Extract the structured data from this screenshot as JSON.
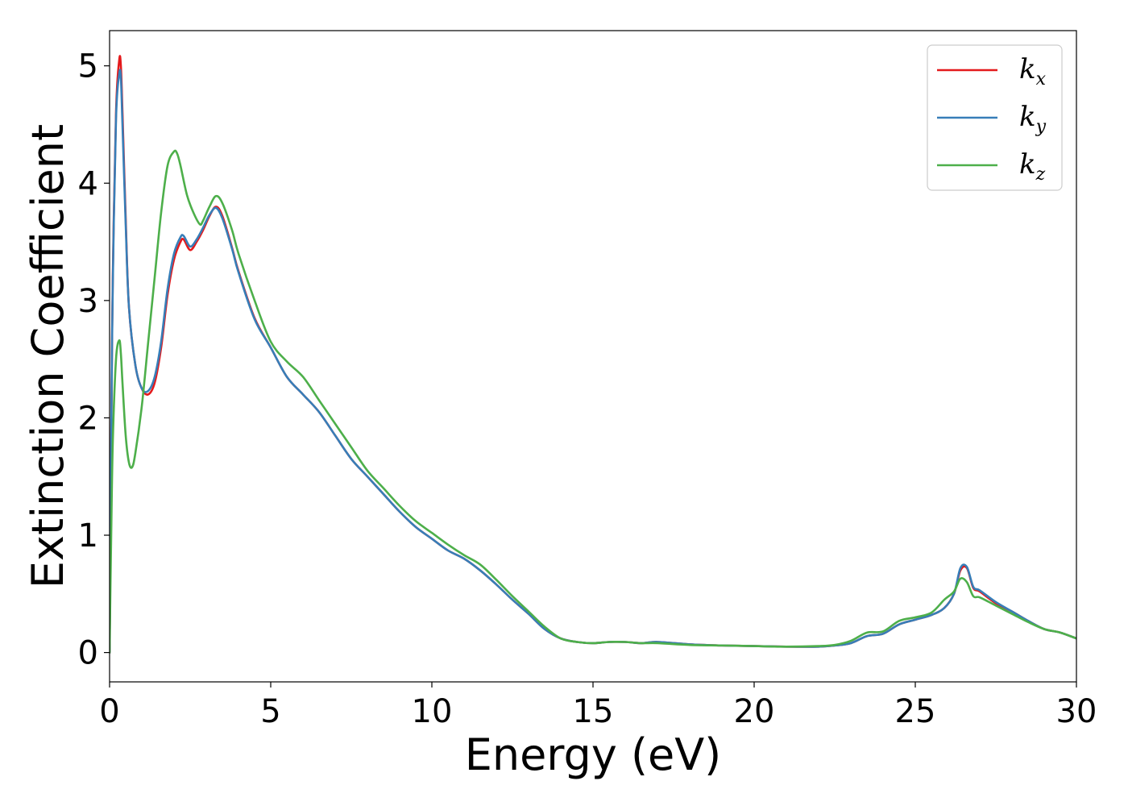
{
  "chart_data": {
    "type": "line",
    "title": "",
    "xlabel": "Energy (eV)",
    "ylabel": "Extinction Coefficient",
    "xlim": [
      0,
      30
    ],
    "ylim": [
      -0.25,
      5.3
    ],
    "xticks": [
      0,
      5,
      10,
      15,
      20,
      25,
      30
    ],
    "xtick_labels": [
      "0",
      "5",
      "10",
      "15",
      "20",
      "25",
      "30"
    ],
    "yticks": [
      0,
      1,
      2,
      3,
      4,
      5
    ],
    "ytick_labels": [
      "0",
      "1",
      "2",
      "3",
      "4",
      "5"
    ],
    "grid": false,
    "legend_position": "top-right",
    "series": [
      {
        "name": "k_x",
        "legend_base": "k",
        "legend_sub": "x",
        "color": "#e41a1c",
        "x": [
          0,
          0.05,
          0.1,
          0.2,
          0.3,
          0.35,
          0.4,
          0.5,
          0.6,
          0.8,
          1.0,
          1.2,
          1.4,
          1.6,
          1.8,
          2.0,
          2.2,
          2.3,
          2.5,
          2.7,
          2.9,
          3.1,
          3.3,
          3.5,
          3.8,
          4.0,
          4.5,
          5.0,
          5.5,
          6.0,
          6.5,
          7.0,
          7.5,
          8.0,
          8.5,
          9.0,
          9.5,
          10.0,
          10.5,
          11.0,
          11.5,
          12.0,
          12.5,
          13.0,
          13.5,
          14.0,
          14.5,
          15.0,
          15.5,
          16.0,
          16.5,
          17.0,
          18.0,
          19.0,
          20.0,
          21.0,
          22.0,
          22.5,
          23.0,
          23.5,
          24.0,
          24.5,
          25.0,
          25.5,
          25.9,
          26.2,
          26.4,
          26.6,
          26.8,
          27.0,
          27.5,
          28.0,
          28.5,
          29.0,
          29.5,
          30.0
        ],
        "y": [
          0,
          1.8,
          3.2,
          4.6,
          5.05,
          5.0,
          4.6,
          3.7,
          2.95,
          2.45,
          2.25,
          2.2,
          2.3,
          2.6,
          3.05,
          3.35,
          3.5,
          3.52,
          3.43,
          3.5,
          3.6,
          3.72,
          3.8,
          3.72,
          3.45,
          3.25,
          2.85,
          2.6,
          2.35,
          2.2,
          2.05,
          1.85,
          1.65,
          1.5,
          1.35,
          1.2,
          1.07,
          0.97,
          0.87,
          0.8,
          0.7,
          0.58,
          0.45,
          0.33,
          0.2,
          0.12,
          0.09,
          0.08,
          0.09,
          0.09,
          0.08,
          0.09,
          0.07,
          0.06,
          0.055,
          0.05,
          0.05,
          0.06,
          0.08,
          0.14,
          0.16,
          0.24,
          0.28,
          0.32,
          0.38,
          0.5,
          0.7,
          0.72,
          0.55,
          0.52,
          0.42,
          0.35,
          0.27,
          0.2,
          0.17,
          0.12
        ]
      },
      {
        "name": "k_y",
        "legend_base": "k",
        "legend_sub": "y",
        "color": "#377eb8",
        "x": [
          0,
          0.05,
          0.1,
          0.2,
          0.3,
          0.35,
          0.4,
          0.5,
          0.6,
          0.8,
          1.0,
          1.2,
          1.4,
          1.6,
          1.8,
          2.0,
          2.2,
          2.3,
          2.5,
          2.7,
          2.9,
          3.1,
          3.3,
          3.5,
          3.8,
          4.0,
          4.5,
          5.0,
          5.5,
          6.0,
          6.5,
          7.0,
          7.5,
          8.0,
          8.5,
          9.0,
          9.5,
          10.0,
          10.5,
          11.0,
          11.5,
          12.0,
          12.5,
          13.0,
          13.5,
          14.0,
          14.5,
          15.0,
          15.5,
          16.0,
          16.5,
          17.0,
          18.0,
          19.0,
          20.0,
          21.0,
          22.0,
          22.5,
          23.0,
          23.5,
          24.0,
          24.5,
          25.0,
          25.5,
          25.9,
          26.2,
          26.4,
          26.6,
          26.8,
          27.0,
          27.5,
          28.0,
          28.5,
          29.0,
          29.5,
          30.0
        ],
        "y": [
          0,
          1.8,
          3.15,
          4.55,
          4.93,
          4.9,
          4.5,
          3.65,
          2.95,
          2.45,
          2.25,
          2.23,
          2.35,
          2.65,
          3.1,
          3.4,
          3.54,
          3.55,
          3.46,
          3.52,
          3.62,
          3.73,
          3.79,
          3.7,
          3.44,
          3.24,
          2.84,
          2.6,
          2.35,
          2.2,
          2.05,
          1.85,
          1.65,
          1.5,
          1.35,
          1.2,
          1.07,
          0.97,
          0.87,
          0.8,
          0.7,
          0.58,
          0.45,
          0.33,
          0.2,
          0.12,
          0.09,
          0.08,
          0.09,
          0.09,
          0.08,
          0.09,
          0.07,
          0.06,
          0.055,
          0.05,
          0.05,
          0.06,
          0.08,
          0.14,
          0.16,
          0.24,
          0.28,
          0.32,
          0.38,
          0.5,
          0.72,
          0.73,
          0.56,
          0.53,
          0.43,
          0.35,
          0.27,
          0.2,
          0.17,
          0.12
        ]
      },
      {
        "name": "k_z",
        "legend_base": "k",
        "legend_sub": "z",
        "color": "#4daf4a",
        "x": [
          0,
          0.05,
          0.1,
          0.2,
          0.3,
          0.35,
          0.4,
          0.5,
          0.6,
          0.7,
          0.8,
          1.0,
          1.2,
          1.4,
          1.6,
          1.8,
          2.0,
          2.1,
          2.2,
          2.4,
          2.6,
          2.8,
          2.9,
          3.1,
          3.3,
          3.5,
          3.8,
          4.0,
          4.5,
          5.0,
          5.5,
          6.0,
          6.5,
          7.0,
          7.5,
          8.0,
          8.5,
          9.0,
          9.5,
          10.0,
          10.5,
          11.0,
          11.5,
          12.0,
          12.5,
          13.0,
          13.5,
          14.0,
          14.5,
          15.0,
          15.5,
          16.0,
          16.5,
          17.0,
          18.0,
          19.0,
          20.0,
          21.0,
          22.0,
          22.5,
          23.0,
          23.5,
          24.0,
          24.5,
          25.0,
          25.5,
          25.9,
          26.2,
          26.4,
          26.6,
          26.8,
          27.0,
          27.5,
          28.0,
          28.5,
          29.0,
          29.5,
          30.0
        ],
        "y": [
          0,
          1.0,
          1.8,
          2.5,
          2.66,
          2.55,
          2.3,
          1.85,
          1.62,
          1.58,
          1.7,
          2.1,
          2.65,
          3.2,
          3.75,
          4.15,
          4.27,
          4.25,
          4.15,
          3.9,
          3.75,
          3.65,
          3.68,
          3.8,
          3.89,
          3.83,
          3.6,
          3.4,
          3.0,
          2.65,
          2.48,
          2.35,
          2.15,
          1.95,
          1.75,
          1.55,
          1.4,
          1.25,
          1.12,
          1.02,
          0.92,
          0.83,
          0.75,
          0.62,
          0.48,
          0.35,
          0.22,
          0.12,
          0.09,
          0.08,
          0.09,
          0.09,
          0.08,
          0.08,
          0.065,
          0.06,
          0.055,
          0.05,
          0.055,
          0.065,
          0.1,
          0.17,
          0.18,
          0.27,
          0.3,
          0.34,
          0.45,
          0.52,
          0.63,
          0.6,
          0.48,
          0.47,
          0.4,
          0.33,
          0.26,
          0.2,
          0.17,
          0.12
        ]
      }
    ]
  }
}
